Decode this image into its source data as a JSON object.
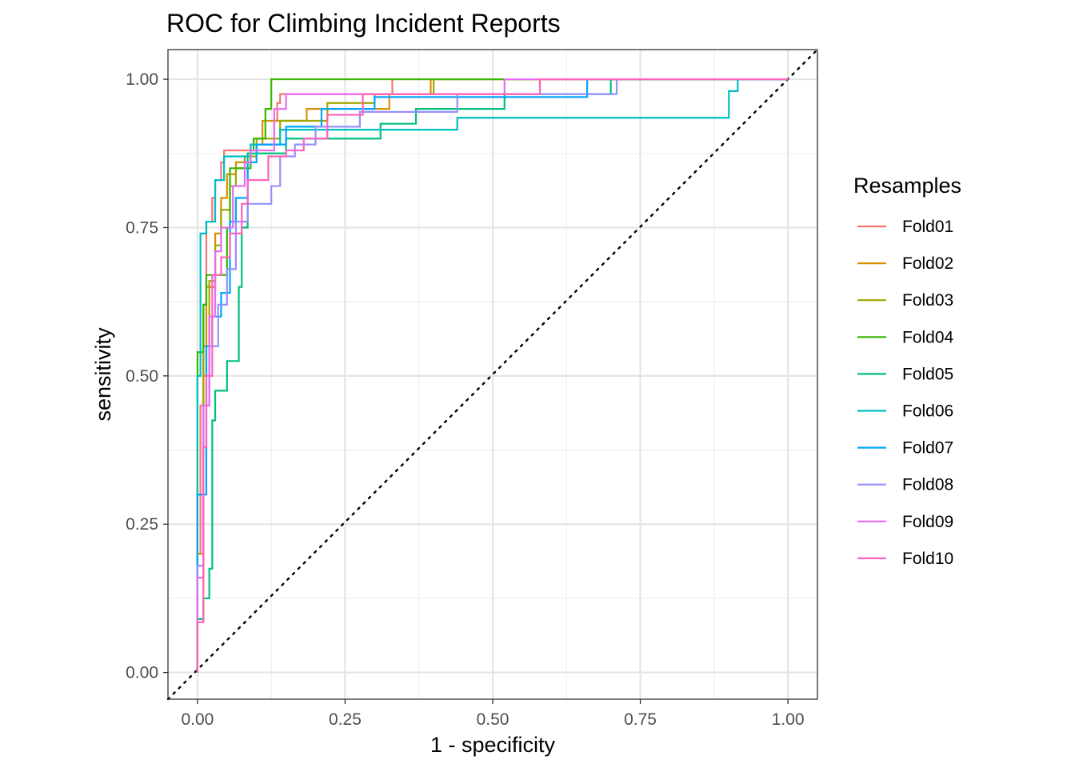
{
  "chart_data": {
    "type": "line",
    "title": "ROC for Climbing Incident Reports",
    "xlabel": "1 - specificity",
    "ylabel": "sensitivity",
    "xlim": [
      -0.05,
      1.05
    ],
    "ylim": [
      -0.045,
      1.05
    ],
    "x_ticks": [
      0,
      0.25,
      0.5,
      0.75,
      1
    ],
    "x_tick_labels": [
      "0.00",
      "0.25",
      "0.50",
      "0.75",
      "1.00"
    ],
    "y_ticks": [
      0,
      0.25,
      0.5,
      0.75,
      1
    ],
    "y_tick_labels": [
      "0.00",
      "0.25",
      "0.50",
      "0.75",
      "1.00"
    ],
    "grid": true,
    "legend": {
      "title": "Resamples",
      "position": "right"
    },
    "reference_line": {
      "from": [
        0,
        0
      ],
      "to": [
        1,
        1
      ],
      "style": "dotted",
      "color": "#000000"
    },
    "series": [
      {
        "name": "Fold01",
        "color": "#F8766D",
        "points": [
          [
            0,
            0
          ],
          [
            0,
            0.2
          ],
          [
            0.005,
            0.2
          ],
          [
            0.005,
            0.45
          ],
          [
            0.01,
            0.45
          ],
          [
            0.01,
            0.62
          ],
          [
            0.015,
            0.62
          ],
          [
            0.015,
            0.76
          ],
          [
            0.025,
            0.76
          ],
          [
            0.025,
            0.8
          ],
          [
            0.03,
            0.8
          ],
          [
            0.03,
            0.83
          ],
          [
            0.04,
            0.83
          ],
          [
            0.04,
            0.86
          ],
          [
            0.045,
            0.86
          ],
          [
            0.045,
            0.88
          ],
          [
            0.1,
            0.88
          ],
          [
            0.1,
            0.89
          ],
          [
            0.13,
            0.89
          ],
          [
            0.13,
            0.93
          ],
          [
            0.135,
            0.93
          ],
          [
            0.135,
            0.96
          ],
          [
            0.14,
            0.96
          ],
          [
            0.14,
            0.975
          ],
          [
            0.33,
            0.975
          ],
          [
            0.33,
            1
          ],
          [
            1,
            1
          ]
        ]
      },
      {
        "name": "Fold02",
        "color": "#D89000",
        "points": [
          [
            0,
            0
          ],
          [
            0,
            0.2
          ],
          [
            0.01,
            0.2
          ],
          [
            0.01,
            0.5
          ],
          [
            0.015,
            0.5
          ],
          [
            0.015,
            0.65
          ],
          [
            0.03,
            0.65
          ],
          [
            0.03,
            0.74
          ],
          [
            0.04,
            0.74
          ],
          [
            0.04,
            0.8
          ],
          [
            0.05,
            0.8
          ],
          [
            0.05,
            0.84
          ],
          [
            0.065,
            0.84
          ],
          [
            0.065,
            0.86
          ],
          [
            0.09,
            0.86
          ],
          [
            0.09,
            0.89
          ],
          [
            0.11,
            0.89
          ],
          [
            0.11,
            0.93
          ],
          [
            0.185,
            0.93
          ],
          [
            0.185,
            0.95
          ],
          [
            0.325,
            0.95
          ],
          [
            0.325,
            0.975
          ],
          [
            0.395,
            0.975
          ],
          [
            0.395,
            1
          ],
          [
            1,
            1
          ]
        ]
      },
      {
        "name": "Fold03",
        "color": "#A3A500",
        "points": [
          [
            0,
            0
          ],
          [
            0,
            0.3
          ],
          [
            0.01,
            0.3
          ],
          [
            0.01,
            0.55
          ],
          [
            0.02,
            0.55
          ],
          [
            0.02,
            0.66
          ],
          [
            0.03,
            0.66
          ],
          [
            0.03,
            0.72
          ],
          [
            0.04,
            0.72
          ],
          [
            0.04,
            0.78
          ],
          [
            0.055,
            0.78
          ],
          [
            0.055,
            0.82
          ],
          [
            0.065,
            0.82
          ],
          [
            0.065,
            0.85
          ],
          [
            0.08,
            0.85
          ],
          [
            0.08,
            0.87
          ],
          [
            0.1,
            0.87
          ],
          [
            0.1,
            0.9
          ],
          [
            0.14,
            0.9
          ],
          [
            0.14,
            0.93
          ],
          [
            0.22,
            0.93
          ],
          [
            0.22,
            0.96
          ],
          [
            0.3,
            0.96
          ],
          [
            0.3,
            0.975
          ],
          [
            0.4,
            0.975
          ],
          [
            0.4,
            1
          ],
          [
            1,
            1
          ]
        ]
      },
      {
        "name": "Fold04",
        "color": "#39B600",
        "points": [
          [
            0,
            0
          ],
          [
            0,
            0.54
          ],
          [
            0.01,
            0.54
          ],
          [
            0.01,
            0.62
          ],
          [
            0.015,
            0.62
          ],
          [
            0.015,
            0.67
          ],
          [
            0.05,
            0.67
          ],
          [
            0.05,
            0.75
          ],
          [
            0.055,
            0.75
          ],
          [
            0.055,
            0.85
          ],
          [
            0.09,
            0.85
          ],
          [
            0.09,
            0.88
          ],
          [
            0.095,
            0.88
          ],
          [
            0.095,
            0.9
          ],
          [
            0.115,
            0.9
          ],
          [
            0.115,
            0.95
          ],
          [
            0.125,
            0.95
          ],
          [
            0.125,
            1
          ],
          [
            1,
            1
          ]
        ]
      },
      {
        "name": "Fold05",
        "color": "#00BF7D",
        "points": [
          [
            0,
            0
          ],
          [
            0,
            0.09
          ],
          [
            0.01,
            0.09
          ],
          [
            0.01,
            0.125
          ],
          [
            0.02,
            0.125
          ],
          [
            0.02,
            0.175
          ],
          [
            0.025,
            0.175
          ],
          [
            0.025,
            0.425
          ],
          [
            0.03,
            0.425
          ],
          [
            0.03,
            0.475
          ],
          [
            0.05,
            0.475
          ],
          [
            0.05,
            0.525
          ],
          [
            0.07,
            0.525
          ],
          [
            0.07,
            0.65
          ],
          [
            0.075,
            0.65
          ],
          [
            0.075,
            0.75
          ],
          [
            0.085,
            0.75
          ],
          [
            0.085,
            0.875
          ],
          [
            0.15,
            0.875
          ],
          [
            0.15,
            0.9
          ],
          [
            0.31,
            0.9
          ],
          [
            0.31,
            0.925
          ],
          [
            0.37,
            0.925
          ],
          [
            0.37,
            0.95
          ],
          [
            0.52,
            0.95
          ],
          [
            0.52,
            0.975
          ],
          [
            0.7,
            0.975
          ],
          [
            0.7,
            1
          ],
          [
            1,
            1
          ]
        ]
      },
      {
        "name": "Fold06",
        "color": "#00BFC4",
        "points": [
          [
            0,
            0
          ],
          [
            0,
            0.5
          ],
          [
            0.005,
            0.5
          ],
          [
            0.005,
            0.74
          ],
          [
            0.015,
            0.74
          ],
          [
            0.015,
            0.76
          ],
          [
            0.03,
            0.76
          ],
          [
            0.03,
            0.83
          ],
          [
            0.045,
            0.83
          ],
          [
            0.045,
            0.87
          ],
          [
            0.09,
            0.87
          ],
          [
            0.09,
            0.89
          ],
          [
            0.14,
            0.89
          ],
          [
            0.14,
            0.915
          ],
          [
            0.44,
            0.915
          ],
          [
            0.44,
            0.935
          ],
          [
            0.9,
            0.935
          ],
          [
            0.9,
            0.98
          ],
          [
            0.915,
            0.98
          ],
          [
            0.915,
            1
          ],
          [
            1,
            1
          ]
        ]
      },
      {
        "name": "Fold07",
        "color": "#00A5FF",
        "points": [
          [
            0,
            0
          ],
          [
            0,
            0.3
          ],
          [
            0.015,
            0.3
          ],
          [
            0.015,
            0.55
          ],
          [
            0.025,
            0.55
          ],
          [
            0.025,
            0.6
          ],
          [
            0.04,
            0.6
          ],
          [
            0.04,
            0.64
          ],
          [
            0.055,
            0.64
          ],
          [
            0.055,
            0.76
          ],
          [
            0.065,
            0.76
          ],
          [
            0.065,
            0.8
          ],
          [
            0.085,
            0.8
          ],
          [
            0.085,
            0.86
          ],
          [
            0.1,
            0.86
          ],
          [
            0.1,
            0.89
          ],
          [
            0.15,
            0.89
          ],
          [
            0.15,
            0.92
          ],
          [
            0.21,
            0.92
          ],
          [
            0.21,
            0.95
          ],
          [
            0.3,
            0.95
          ],
          [
            0.3,
            0.97
          ],
          [
            0.66,
            0.97
          ],
          [
            0.66,
            1
          ],
          [
            1,
            1
          ]
        ]
      },
      {
        "name": "Fold08",
        "color": "#9590FF",
        "points": [
          [
            0,
            0
          ],
          [
            0,
            0.18
          ],
          [
            0.01,
            0.18
          ],
          [
            0.01,
            0.45
          ],
          [
            0.02,
            0.45
          ],
          [
            0.02,
            0.55
          ],
          [
            0.035,
            0.55
          ],
          [
            0.035,
            0.62
          ],
          [
            0.05,
            0.62
          ],
          [
            0.05,
            0.68
          ],
          [
            0.065,
            0.68
          ],
          [
            0.065,
            0.76
          ],
          [
            0.085,
            0.76
          ],
          [
            0.085,
            0.79
          ],
          [
            0.125,
            0.79
          ],
          [
            0.125,
            0.82
          ],
          [
            0.14,
            0.82
          ],
          [
            0.14,
            0.87
          ],
          [
            0.165,
            0.87
          ],
          [
            0.165,
            0.89
          ],
          [
            0.2,
            0.89
          ],
          [
            0.2,
            0.92
          ],
          [
            0.275,
            0.92
          ],
          [
            0.275,
            0.945
          ],
          [
            0.44,
            0.945
          ],
          [
            0.44,
            0.975
          ],
          [
            0.71,
            0.975
          ],
          [
            0.71,
            1
          ],
          [
            1,
            1
          ]
        ]
      },
      {
        "name": "Fold09",
        "color": "#E76BF3",
        "points": [
          [
            0,
            0
          ],
          [
            0,
            0.16
          ],
          [
            0.01,
            0.16
          ],
          [
            0.01,
            0.45
          ],
          [
            0.02,
            0.45
          ],
          [
            0.02,
            0.6
          ],
          [
            0.03,
            0.6
          ],
          [
            0.03,
            0.71
          ],
          [
            0.04,
            0.71
          ],
          [
            0.04,
            0.75
          ],
          [
            0.06,
            0.75
          ],
          [
            0.06,
            0.82
          ],
          [
            0.08,
            0.82
          ],
          [
            0.08,
            0.86
          ],
          [
            0.09,
            0.86
          ],
          [
            0.09,
            0.88
          ],
          [
            0.13,
            0.88
          ],
          [
            0.13,
            0.95
          ],
          [
            0.15,
            0.95
          ],
          [
            0.15,
            0.975
          ],
          [
            0.52,
            0.975
          ],
          [
            0.52,
            1
          ],
          [
            1,
            1
          ]
        ]
      },
      {
        "name": "Fold10",
        "color": "#FF62BC",
        "points": [
          [
            0,
            0
          ],
          [
            0,
            0.085
          ],
          [
            0.01,
            0.085
          ],
          [
            0.01,
            0.38
          ],
          [
            0.015,
            0.38
          ],
          [
            0.015,
            0.5
          ],
          [
            0.025,
            0.5
          ],
          [
            0.025,
            0.67
          ],
          [
            0.04,
            0.67
          ],
          [
            0.04,
            0.7
          ],
          [
            0.055,
            0.7
          ],
          [
            0.055,
            0.74
          ],
          [
            0.075,
            0.74
          ],
          [
            0.075,
            0.79
          ],
          [
            0.085,
            0.79
          ],
          [
            0.085,
            0.83
          ],
          [
            0.12,
            0.83
          ],
          [
            0.12,
            0.87
          ],
          [
            0.15,
            0.87
          ],
          [
            0.15,
            0.88
          ],
          [
            0.18,
            0.88
          ],
          [
            0.18,
            0.9
          ],
          [
            0.22,
            0.9
          ],
          [
            0.22,
            0.94
          ],
          [
            0.28,
            0.94
          ],
          [
            0.28,
            0.975
          ],
          [
            0.58,
            0.975
          ],
          [
            0.58,
            1
          ],
          [
            1,
            1
          ]
        ]
      }
    ]
  }
}
